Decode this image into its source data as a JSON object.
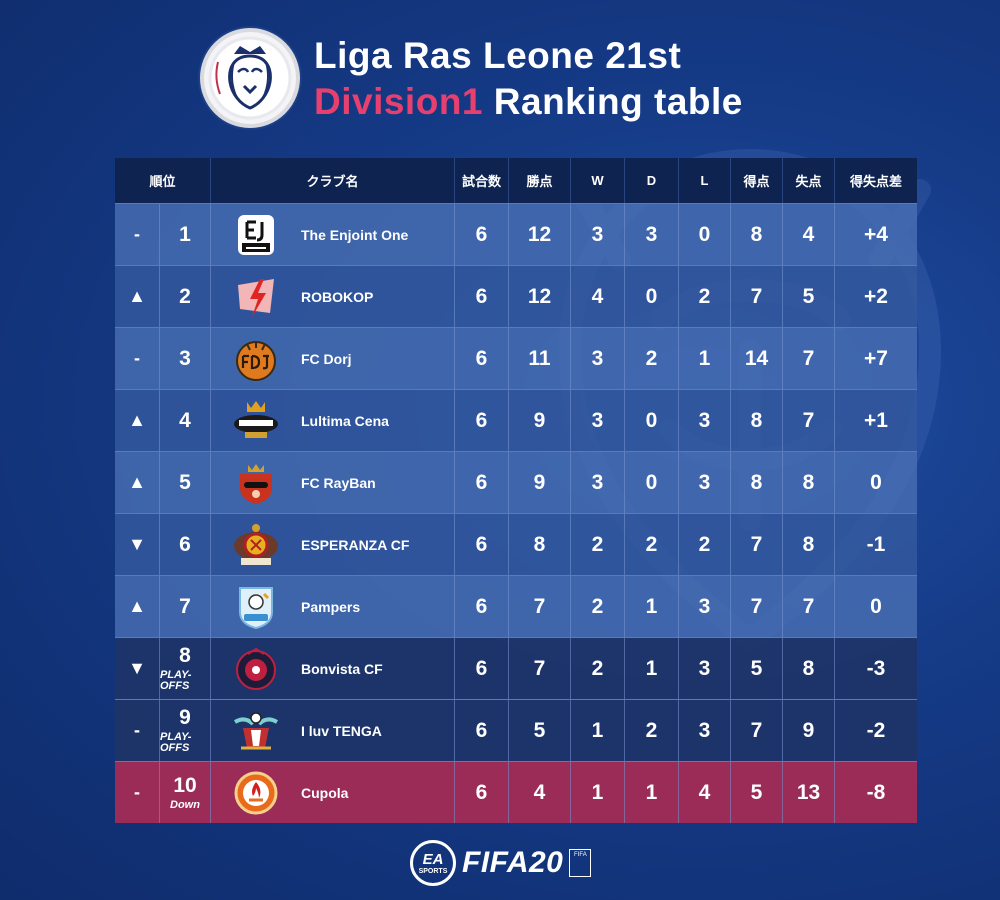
{
  "header": {
    "title_line1": "Liga Ras Leone 21st",
    "title_division": "Division1",
    "title_rest": "Ranking table",
    "logo_text": "Liga Ras Leone"
  },
  "colors": {
    "division_accent": "#e8406e",
    "relegation_row": "#9a2c57",
    "header_row": "#0f2350"
  },
  "columns": [
    "順位",
    "クラブ名",
    "試合数",
    "勝点",
    "W",
    "D",
    "L",
    "得点",
    "失点",
    "得失点差"
  ],
  "rows": [
    {
      "move": "-",
      "rank": "1",
      "note": "",
      "club": "The Enjoint One",
      "crest": "enjoint-one-crest",
      "played": "6",
      "pts": "12",
      "w": "3",
      "d": "3",
      "l": "0",
      "gf": "8",
      "ga": "4",
      "gd": "+4"
    },
    {
      "move": "▲",
      "rank": "2",
      "note": "",
      "club": "ROBOKOP",
      "crest": "robokop-crest",
      "played": "6",
      "pts": "12",
      "w": "4",
      "d": "0",
      "l": "2",
      "gf": "7",
      "ga": "5",
      "gd": "+2"
    },
    {
      "move": "-",
      "rank": "3",
      "note": "",
      "club": "FC Dorj",
      "crest": "fc-dorj-crest",
      "played": "6",
      "pts": "11",
      "w": "3",
      "d": "2",
      "l": "1",
      "gf": "14",
      "ga": "7",
      "gd": "+7"
    },
    {
      "move": "▲",
      "rank": "4",
      "note": "",
      "club": "Lultima Cena",
      "crest": "lultima-cena-crest",
      "played": "6",
      "pts": "9",
      "w": "3",
      "d": "0",
      "l": "3",
      "gf": "8",
      "ga": "7",
      "gd": "+1"
    },
    {
      "move": "▲",
      "rank": "5",
      "note": "",
      "club": "FC RayBan",
      "crest": "fc-rayban-crest",
      "played": "6",
      "pts": "9",
      "w": "3",
      "d": "0",
      "l": "3",
      "gf": "8",
      "ga": "8",
      "gd": "0"
    },
    {
      "move": "▼",
      "rank": "6",
      "note": "",
      "club": "ESPERANZA CF",
      "crest": "esperanza-cf-crest",
      "played": "6",
      "pts": "8",
      "w": "2",
      "d": "2",
      "l": "2",
      "gf": "7",
      "ga": "8",
      "gd": "-1"
    },
    {
      "move": "▲",
      "rank": "7",
      "note": "",
      "club": "Pampers",
      "crest": "pampers-crest",
      "played": "6",
      "pts": "7",
      "w": "2",
      "d": "1",
      "l": "3",
      "gf": "7",
      "ga": "7",
      "gd": "0"
    },
    {
      "move": "▼",
      "rank": "8",
      "note": "PLAY-OFFS",
      "club": "Bonvista CF",
      "crest": "bonvista-cf-crest",
      "played": "6",
      "pts": "7",
      "w": "2",
      "d": "1",
      "l": "3",
      "gf": "5",
      "ga": "8",
      "gd": "-3"
    },
    {
      "move": "-",
      "rank": "9",
      "note": "PLAY-OFFS",
      "club": "I luv TENGA",
      "crest": "i-luv-tenga-crest",
      "played": "6",
      "pts": "5",
      "w": "1",
      "d": "2",
      "l": "3",
      "gf": "7",
      "ga": "9",
      "gd": "-2"
    },
    {
      "move": "-",
      "rank": "10",
      "note": "Down",
      "club": "Cupola",
      "crest": "cupola-crest",
      "played": "6",
      "pts": "4",
      "w": "1",
      "d": "1",
      "l": "4",
      "gf": "5",
      "ga": "13",
      "gd": "-8"
    }
  ],
  "footer": {
    "ea_main": "EA",
    "ea_sub": "SPORTS",
    "game": "FIFA20",
    "badge": "FIFA"
  }
}
